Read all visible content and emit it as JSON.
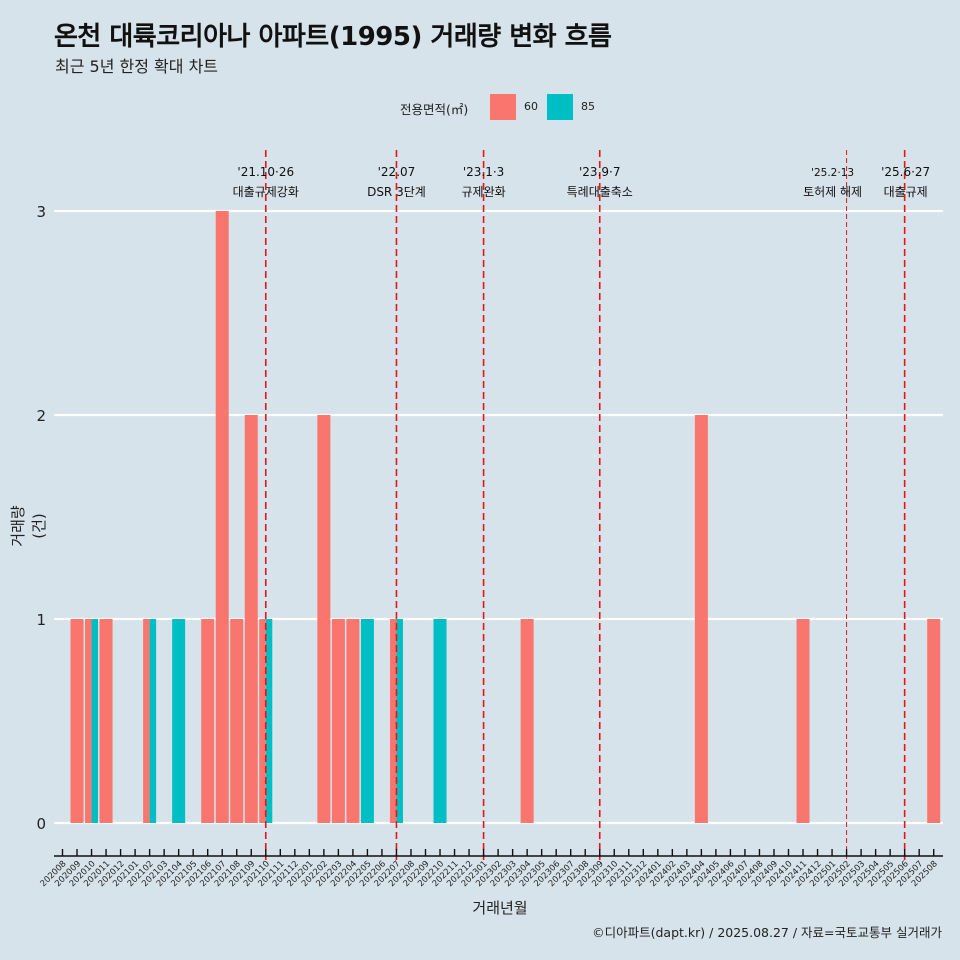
{
  "title": "온천 대륙코리아나 아파트(1995) 거래량 변화 흐름",
  "subtitle": "최근 5년 한정 확대 차트",
  "footer": "©디아파트(dapt.kr) / 2025.08.27 / 자료=국토교통부 실거래가",
  "legend": {
    "title": "전용면적(㎡)",
    "items": [
      {
        "label": "60",
        "color": "#f8766d"
      },
      {
        "label": "85",
        "color": "#00bfc4"
      }
    ]
  },
  "chart_data": {
    "type": "bar",
    "title": "온천 대륙코리아나 아파트(1995) 거래량 변화 흐름",
    "subtitle": "최근 5년 한정 확대 차트",
    "xlabel": "거래년월",
    "ylabel": "거래량(건)",
    "ylim": [
      0,
      3
    ],
    "yticks": [
      0,
      1,
      2,
      3
    ],
    "grid": "horizontal",
    "legend_position": "top",
    "categories": [
      "202008",
      "202009",
      "202010",
      "202011",
      "202012",
      "202101",
      "202102",
      "202103",
      "202104",
      "202105",
      "202106",
      "202107",
      "202108",
      "202109",
      "202110",
      "202111",
      "202112",
      "202201",
      "202202",
      "202203",
      "202204",
      "202205",
      "202206",
      "202207",
      "202208",
      "202209",
      "202210",
      "202211",
      "202212",
      "202301",
      "202302",
      "202303",
      "202304",
      "202305",
      "202306",
      "202307",
      "202308",
      "202309",
      "202310",
      "202311",
      "202312",
      "202401",
      "202402",
      "202403",
      "202404",
      "202405",
      "202406",
      "202407",
      "202408",
      "202409",
      "202410",
      "202411",
      "202412",
      "202501",
      "202502",
      "202503",
      "202504",
      "202505",
      "202506",
      "202507",
      "202508"
    ],
    "series": [
      {
        "name": "60",
        "color": "#f8766d",
        "values": [
          0,
          1,
          1,
          1,
          0,
          0,
          1,
          0,
          0,
          0,
          1,
          3,
          1,
          2,
          1,
          0,
          0,
          0,
          2,
          1,
          1,
          0,
          0,
          1,
          0,
          0,
          0,
          0,
          0,
          0,
          0,
          0,
          1,
          0,
          0,
          0,
          0,
          0,
          0,
          0,
          0,
          0,
          0,
          0,
          2,
          0,
          0,
          0,
          0,
          0,
          0,
          1,
          0,
          0,
          0,
          0,
          0,
          0,
          0,
          0,
          1
        ]
      },
      {
        "name": "85",
        "color": "#00bfc4",
        "values": [
          0,
          0,
          1,
          0,
          0,
          0,
          1,
          0,
          1,
          0,
          0,
          0,
          0,
          0,
          1,
          0,
          0,
          0,
          0,
          0,
          0,
          1,
          0,
          1,
          0,
          0,
          1,
          0,
          0,
          0,
          0,
          0,
          0,
          0,
          0,
          0,
          0,
          0,
          0,
          0,
          0,
          0,
          0,
          0,
          0,
          0,
          0,
          0,
          0,
          0,
          0,
          0,
          0,
          0,
          0,
          0,
          0,
          0,
          0,
          0,
          0
        ]
      }
    ],
    "annotations": [
      {
        "month": "202110",
        "date": "'21.10·26",
        "text": "대출규제강화",
        "style": "dashed"
      },
      {
        "month": "202207",
        "date": "'22.07",
        "text": "DSR 3단계",
        "style": "dashed"
      },
      {
        "month": "202301",
        "date": "'23.1·3",
        "text": "규제완화",
        "style": "dashed"
      },
      {
        "month": "202309",
        "date": "'23.9·7",
        "text": "특례대출축소",
        "style": "dashed"
      },
      {
        "month": "202502",
        "date": "'25.2·13",
        "text": "토허제 해제",
        "style": "thin-dashed"
      },
      {
        "month": "202506",
        "date": "'25.6·27",
        "text": "대출규제",
        "style": "dashed"
      }
    ]
  }
}
